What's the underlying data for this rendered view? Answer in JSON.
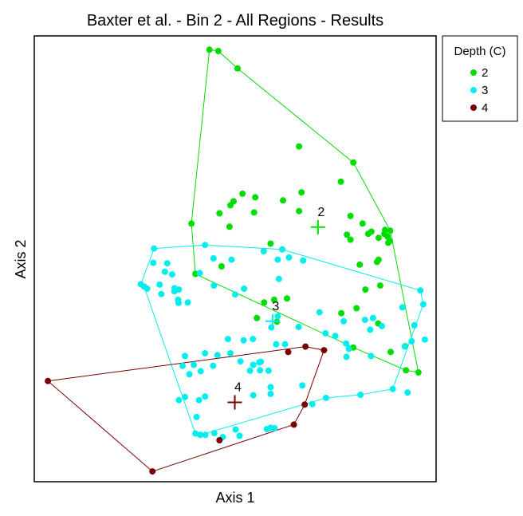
{
  "chart_data": {
    "type": "scatter",
    "title": "Baxter et al. - Bin 2 - All Regions - Results",
    "xlabel": "Axis 1",
    "ylabel": "Axis 2",
    "xlim": [
      0,
      100
    ],
    "ylim": [
      0,
      100
    ],
    "grid": false,
    "legend": {
      "title": "Depth (C)",
      "position": "right-top"
    },
    "series": [
      {
        "name": "2",
        "color": "#00dd00",
        "points": [
          [
            43.6,
            96.9
          ],
          [
            45.8,
            96.6
          ],
          [
            50.6,
            92.7
          ],
          [
            65.9,
            75.2
          ],
          [
            79.4,
            71.6
          ],
          [
            76.3,
            67.3
          ],
          [
            66.5,
            64.9
          ],
          [
            55.0,
            63.8
          ],
          [
            61.9,
            63.1
          ],
          [
            51.8,
            64.6
          ],
          [
            49.6,
            62.9
          ],
          [
            46.1,
            60.2
          ],
          [
            54.7,
            60.4
          ],
          [
            65.9,
            60.7
          ],
          [
            78.7,
            59.6
          ],
          [
            81.7,
            57.9
          ],
          [
            83.9,
            56.1
          ],
          [
            87.1,
            55.6
          ],
          [
            87.9,
            55.0
          ],
          [
            88.6,
            56.3
          ],
          [
            87.3,
            56.5
          ],
          [
            83.1,
            55.6
          ],
          [
            85.7,
            54.7
          ],
          [
            88.5,
            54.0
          ],
          [
            78.7,
            54.3
          ],
          [
            77.8,
            55.4
          ],
          [
            88.1,
            53.6
          ],
          [
            85.7,
            49.8
          ],
          [
            85.3,
            49.3
          ],
          [
            39.1,
            57.9
          ],
          [
            48.8,
            62.0
          ],
          [
            58.8,
            53.4
          ],
          [
            48.6,
            57.2
          ],
          [
            80.2,
            38.9
          ],
          [
            81.0,
            48.7
          ],
          [
            86.1,
            44.0
          ],
          [
            57.2,
            40.2
          ],
          [
            62.9,
            41.1
          ],
          [
            79.4,
            30.1
          ],
          [
            92.5,
            25.0
          ],
          [
            82.4,
            43.1
          ],
          [
            88.7,
            29.1
          ],
          [
            92.3,
            30.4
          ],
          [
            95.6,
            24.5
          ],
          [
            40.1,
            46.6
          ],
          [
            46.6,
            48.3
          ],
          [
            55.4,
            36.7
          ],
          [
            60.4,
            35.9
          ],
          [
            59.7,
            40.8
          ],
          [
            76.4,
            37.8
          ],
          [
            85.6,
            35.5
          ]
        ],
        "centroid": [
          70.6,
          57.1
        ],
        "hull": [
          [
            43.6,
            96.9
          ],
          [
            45.8,
            96.6
          ],
          [
            50.6,
            92.7
          ],
          [
            79.4,
            71.6
          ],
          [
            88.6,
            56.3
          ],
          [
            95.6,
            24.5
          ],
          [
            92.5,
            25.0
          ],
          [
            79.4,
            30.1
          ],
          [
            40.1,
            46.6
          ],
          [
            39.1,
            57.9
          ],
          [
            43.6,
            96.9
          ]
        ]
      },
      {
        "name": "3",
        "color": "#00eeee",
        "points": [
          [
            42.5,
            53.1
          ],
          [
            29.6,
            49.1
          ],
          [
            33.1,
            49.0
          ],
          [
            34.3,
            46.5
          ],
          [
            32.5,
            47.1
          ],
          [
            26.5,
            44.3
          ],
          [
            27.3,
            43.8
          ],
          [
            36.0,
            43.1
          ],
          [
            41.2,
            46.8
          ],
          [
            34.9,
            42.7
          ],
          [
            38.2,
            40.2
          ],
          [
            44.6,
            50.1
          ],
          [
            49.1,
            49.8
          ],
          [
            57.1,
            51.7
          ],
          [
            61.7,
            52.1
          ],
          [
            60.6,
            49.8
          ],
          [
            60.9,
            45.5
          ],
          [
            63.4,
            50.3
          ],
          [
            66.9,
            49.6
          ],
          [
            44.7,
            44.0
          ],
          [
            50.0,
            42.0
          ],
          [
            52.2,
            43.3
          ],
          [
            60.6,
            37.1
          ],
          [
            59.0,
            34.6
          ],
          [
            60.2,
            30.8
          ],
          [
            62.4,
            30.8
          ],
          [
            65.8,
            34.7
          ],
          [
            71.0,
            38.0
          ],
          [
            72.5,
            33.3
          ],
          [
            74.9,
            32.7
          ],
          [
            77.0,
            36.0
          ],
          [
            77.6,
            31.0
          ],
          [
            82.3,
            36.3
          ],
          [
            84.3,
            36.7
          ],
          [
            83.6,
            34.1
          ],
          [
            86.5,
            34.9
          ],
          [
            91.6,
            39.1
          ],
          [
            96.1,
            42.9
          ],
          [
            96.8,
            39.8
          ],
          [
            94.6,
            35.1
          ],
          [
            97.2,
            31.9
          ],
          [
            93.9,
            31.5
          ],
          [
            92.2,
            30.3
          ],
          [
            78.3,
            29.8
          ],
          [
            77.7,
            28.0
          ],
          [
            83.8,
            28.2
          ],
          [
            92.9,
            20.0
          ],
          [
            89.2,
            20.8
          ],
          [
            81.2,
            19.5
          ],
          [
            69.2,
            17.4
          ],
          [
            72.6,
            18.8
          ],
          [
            56.4,
            26.9
          ],
          [
            54.5,
            26.2
          ],
          [
            51.3,
            27.0
          ],
          [
            52.1,
            31.7
          ],
          [
            54.4,
            32.0
          ],
          [
            48.2,
            32.0
          ],
          [
            48.8,
            28.8
          ],
          [
            45.6,
            28.4
          ],
          [
            42.5,
            28.8
          ],
          [
            39.7,
            26.2
          ],
          [
            37.5,
            28.2
          ],
          [
            41.4,
            24.8
          ],
          [
            44.5,
            26.0
          ],
          [
            56.0,
            26.8
          ],
          [
            58.8,
            21.2
          ],
          [
            58.8,
            19.7
          ],
          [
            54.5,
            19.4
          ],
          [
            42.5,
            19.1
          ],
          [
            41.0,
            18.3
          ],
          [
            37.5,
            19.0
          ],
          [
            38.6,
            24.1
          ],
          [
            36.9,
            26.0
          ],
          [
            36.0,
            18.3
          ],
          [
            40.4,
            14.5
          ],
          [
            42.6,
            10.5
          ],
          [
            40.1,
            10.8
          ],
          [
            50.1,
            11.7
          ],
          [
            51.1,
            10.3
          ],
          [
            46.9,
            10.0
          ],
          [
            58.8,
            12.1
          ],
          [
            57.9,
            11.8
          ],
          [
            59.8,
            12.0
          ],
          [
            66.7,
            21.6
          ],
          [
            34.9,
            43.4
          ],
          [
            35.8,
            40.8
          ],
          [
            41.3,
            10.5
          ],
          [
            44.8,
            10.9
          ],
          [
            28.1,
            43.3
          ],
          [
            29.8,
            52.3
          ],
          [
            31.2,
            44.2
          ],
          [
            31.6,
            42.1
          ],
          [
            35.9,
            40.1
          ],
          [
            53.7,
            24.9
          ],
          [
            56.2,
            25.0
          ],
          [
            58.3,
            24.9
          ]
        ],
        "centroid": [
          59.3,
          36.0
        ],
        "hull": [
          [
            42.5,
            53.1
          ],
          [
            61.7,
            52.1
          ],
          [
            96.1,
            42.9
          ],
          [
            96.8,
            39.8
          ],
          [
            89.2,
            20.8
          ],
          [
            81.2,
            19.5
          ],
          [
            72.6,
            18.8
          ],
          [
            41.3,
            10.5
          ],
          [
            40.1,
            10.8
          ],
          [
            27.3,
            43.8
          ],
          [
            26.5,
            44.3
          ],
          [
            29.8,
            52.3
          ],
          [
            42.5,
            53.1
          ]
        ]
      },
      {
        "name": "4",
        "color": "#7a0000",
        "points": [
          [
            3.4,
            22.6
          ],
          [
            29.4,
            2.3
          ],
          [
            46.1,
            9.3
          ],
          [
            64.6,
            12.8
          ],
          [
            67.3,
            17.3
          ],
          [
            72.1,
            29.5
          ],
          [
            67.5,
            30.3
          ],
          [
            63.2,
            29.1
          ]
        ],
        "centroid": [
          49.9,
          17.8
        ],
        "hull": [
          [
            3.4,
            22.6
          ],
          [
            29.4,
            2.3
          ],
          [
            64.6,
            12.8
          ],
          [
            67.3,
            17.3
          ],
          [
            72.1,
            29.5
          ],
          [
            67.5,
            30.3
          ],
          [
            3.4,
            22.6
          ]
        ]
      }
    ]
  }
}
